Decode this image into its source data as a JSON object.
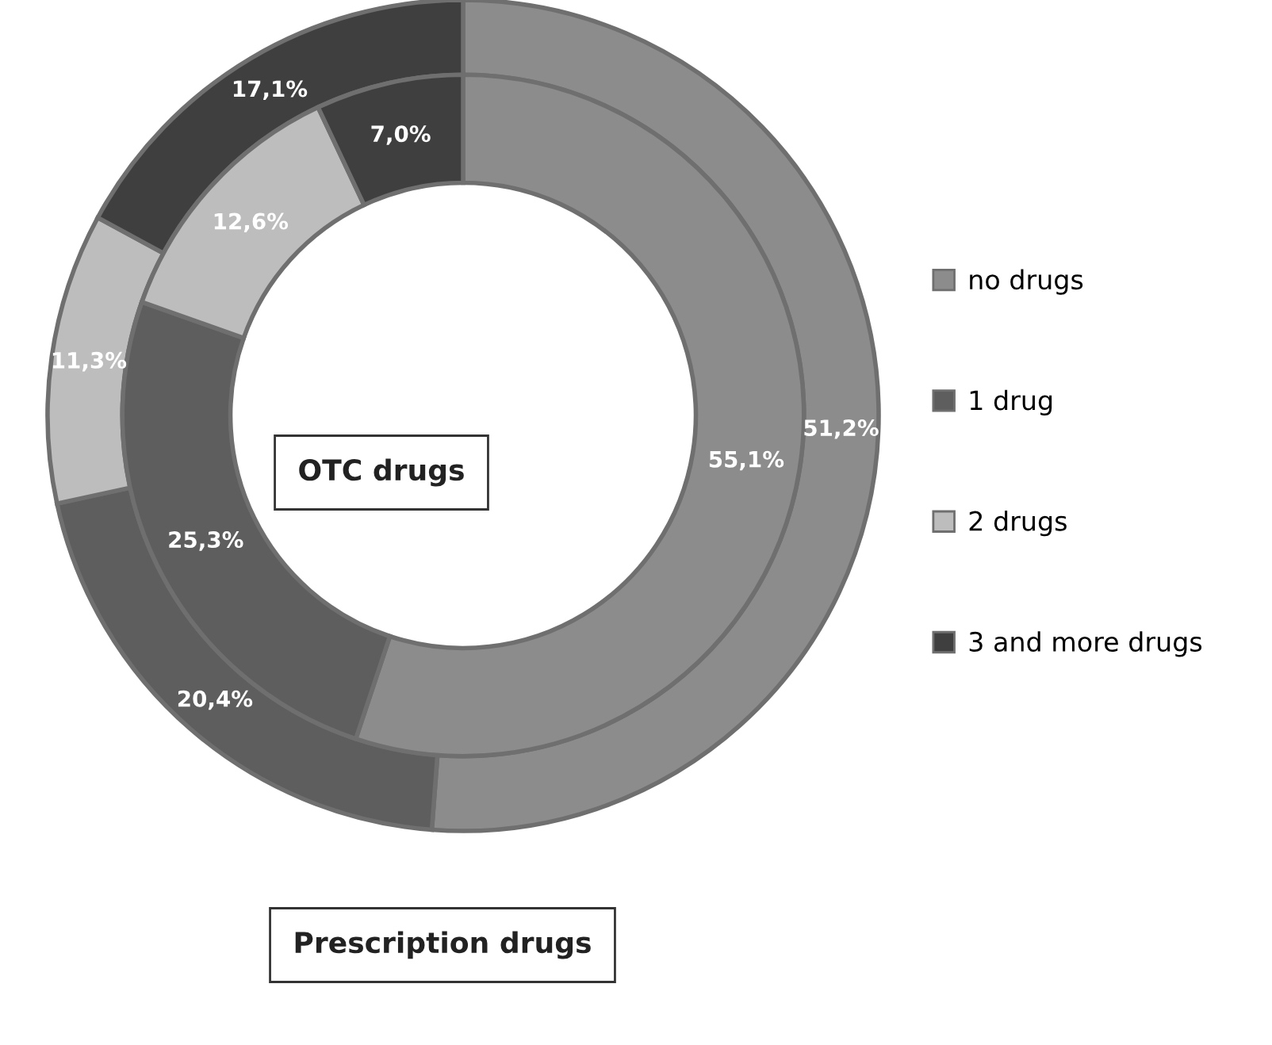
{
  "chart_data": {
    "type": "donut",
    "categories": [
      "no drugs",
      "1 drug",
      "2 drugs",
      "3 and more drugs"
    ],
    "colors": [
      "#8c8c8c",
      "#5e5e5e",
      "#bdbdbd",
      "#3f3f3f"
    ],
    "series": [
      {
        "name": "Prescription drugs",
        "values": [
          51.2,
          20.4,
          11.3,
          17.1
        ],
        "value_labels": [
          "51,2%",
          "20,4%",
          "11,3%",
          "17,1%"
        ]
      },
      {
        "name": "OTC drugs",
        "values": [
          55.1,
          25.3,
          12.6,
          7.0
        ],
        "value_labels": [
          "55,1%",
          "25,3%",
          "12,6%",
          "7,0%"
        ]
      }
    ],
    "legend": "right"
  }
}
